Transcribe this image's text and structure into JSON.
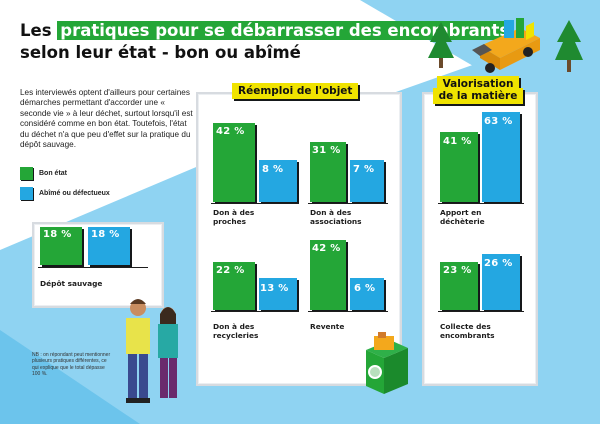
{
  "title": {
    "highlight": "pratiques pour se débarrasser des encombrants",
    "prefix": "Les ",
    "line2": "selon leur état - bon ou abîmé"
  },
  "intro": "Les interviewés optent d'ailleurs pour certaines démarches permettant d'accorder une « seconde vie » à leur déchet, surtout lorsqu'il est considéré comme en bon état. Toutefois, l'état du déchet n'a que peu d'effet sur la pratique du dépôt sauvage.",
  "legend": {
    "good": "Bon état",
    "damaged": "Abîmé ou défectueux"
  },
  "colors": {
    "green": "#24a637",
    "blue": "#24a7e1",
    "yellow": "#f0e300",
    "sky": "#8fd3f2"
  },
  "panels": {
    "reuse": "Réemploi de l'objet",
    "valorisation_line1": "Valorisation",
    "valorisation_line2": "de la matière"
  },
  "items": {
    "depot": {
      "label": "Dépôt sauvage",
      "good": "18 %",
      "bad": "18 %",
      "good_v": 18,
      "bad_v": 18
    },
    "proches": {
      "label1": "Don à des",
      "label2": "proches",
      "good": "42 %",
      "bad": "8 %",
      "good_v": 42,
      "bad_v": 8
    },
    "associations": {
      "label1": "Don à des",
      "label2": "associations",
      "good": "31 %",
      "bad": "7 %",
      "good_v": 31,
      "bad_v": 7
    },
    "recycleries": {
      "label1": "Don à des",
      "label2": "recycleries",
      "good": "22 %",
      "bad": "13 %",
      "good_v": 22,
      "bad_v": 13
    },
    "revente": {
      "label": "Revente",
      "good": "42 %",
      "bad": "6 %",
      "good_v": 42,
      "bad_v": 6
    },
    "decheterie": {
      "label1": "Apport en",
      "label2": "déchèterie",
      "good": "41 %",
      "bad": "63 %",
      "good_v": 41,
      "bad_v": 63
    },
    "collecte": {
      "label1": "Collecte des",
      "label2": "encombrants",
      "good": "23 %",
      "bad": "26 %",
      "good_v": 23,
      "bad_v": 26
    }
  },
  "nb": "NB : on répondant peut mentionner plusieurs pratiques différentes, ce qui explique que le total dépasse 100 %.",
  "icons": [
    "tree-icon",
    "garbage-truck-icon",
    "people-illustration",
    "recycling-bin-icon"
  ]
}
